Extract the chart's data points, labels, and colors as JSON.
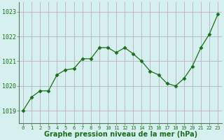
{
  "x": [
    0,
    1,
    2,
    3,
    4,
    5,
    6,
    7,
    8,
    9,
    10,
    11,
    12,
    13,
    14,
    15,
    16,
    17,
    18,
    19,
    20,
    21,
    22,
    23
  ],
  "y": [
    1019.0,
    1019.55,
    1019.8,
    1019.8,
    1020.45,
    1020.65,
    1020.7,
    1021.1,
    1021.1,
    1021.55,
    1021.55,
    1021.35,
    1021.55,
    1021.3,
    1021.0,
    1020.6,
    1020.45,
    1020.1,
    1020.0,
    1020.3,
    1020.8,
    1021.55,
    1022.1,
    1022.9
  ],
  "line_color": "#1a6e1a",
  "marker": "D",
  "marker_size": 2.5,
  "bg_color": "#d6f0f0",
  "grid_color": "#c0b8c8",
  "xlabel": "Graphe pression niveau de la mer (hPa)",
  "xlabel_fontsize": 7,
  "xlabel_color": "#1a6e1a",
  "tick_color": "#1a6e1a",
  "ylim": [
    1018.5,
    1023.4
  ],
  "yticks": [
    1019,
    1020,
    1021,
    1022,
    1023
  ],
  "xticks": [
    0,
    1,
    2,
    3,
    4,
    5,
    6,
    7,
    8,
    9,
    10,
    11,
    12,
    13,
    14,
    15,
    16,
    17,
    18,
    19,
    20,
    21,
    22,
    23
  ]
}
